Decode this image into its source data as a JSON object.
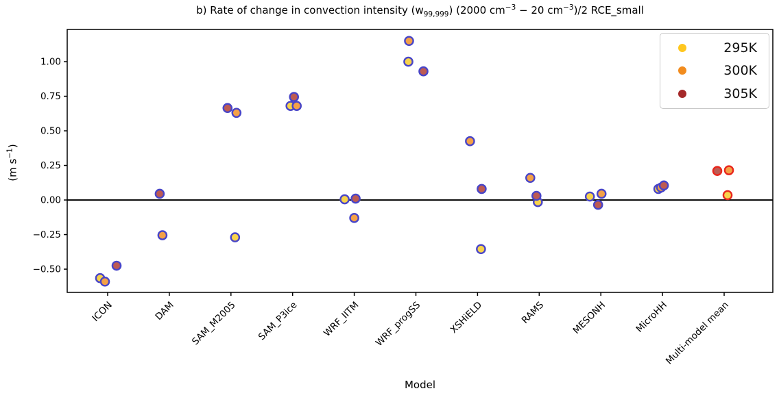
{
  "title": {
    "pre": "b) Rate of change in convection intensity (w",
    "sub": "99,999",
    "mid1": ") (2000 cm",
    "sup1": "−3",
    "mid2": " − 20 cm",
    "sup2": "−3",
    "post": ")/2 RCE_small"
  },
  "y_axis": {
    "label_pre": "(m s",
    "label_sup": "−1",
    "label_post": ")"
  },
  "x_axis": {
    "label": "Model"
  },
  "chart_data": {
    "type": "scatter",
    "title": "b) Rate of change in convection intensity (w99,999) (2000 cm−3 − 20 cm−3)/2 RCE_small",
    "xlabel": "Model",
    "ylabel": "(m s−1)",
    "ylim": [
      -0.668,
      1.233
    ],
    "grid": false,
    "zero_line": true,
    "legend_position": "upper right",
    "yticks": [
      {
        "label": "1.00",
        "value": 1.0
      },
      {
        "label": "0.75",
        "value": 0.75
      },
      {
        "label": "0.50",
        "value": 0.5
      },
      {
        "label": "0.25",
        "value": 0.25
      },
      {
        "label": "0.00",
        "value": 0.0
      },
      {
        "label": "−0.25",
        "value": -0.25
      },
      {
        "label": "−0.50",
        "value": -0.5
      }
    ],
    "categories": [
      "ICON",
      "DAM",
      "SAM_M2005",
      "SAM_P3ice",
      "WRF_IITM",
      "WRF_progSS",
      "XSHiELD",
      "RAMS",
      "MESONH",
      "MicroHH",
      "Multi-model mean"
    ],
    "series": [
      {
        "name": "295K",
        "fill": "#F8D34B",
        "legend_color": "#FFC71F"
      },
      {
        "name": "300K",
        "fill": "#F4A147",
        "legend_color": "#F28C1E"
      },
      {
        "name": "305K",
        "fill": "#BD5B53",
        "legend_color": "#A5292A"
      }
    ],
    "marker": {
      "edge_default": "#4845C8",
      "edge_multi_model": "#E8261C",
      "radius": 6.1,
      "edge_width": 2.4
    },
    "points": [
      {
        "category": "ICON",
        "series": "295K",
        "value": -0.565,
        "dx": -11
      },
      {
        "category": "ICON",
        "series": "300K",
        "value": -0.59,
        "dx": -4
      },
      {
        "category": "ICON",
        "series": "305K",
        "value": -0.475,
        "dx": 13
      },
      {
        "category": "DAM",
        "series": "300K",
        "value": -0.255,
        "dx": -10
      },
      {
        "category": "DAM",
        "series": "305K",
        "value": 0.045,
        "dx": -14
      },
      {
        "category": "SAM_M2005",
        "series": "295K",
        "value": -0.27,
        "dx": 6
      },
      {
        "category": "SAM_M2005",
        "series": "300K",
        "value": 0.63,
        "dx": 8
      },
      {
        "category": "SAM_M2005",
        "series": "305K",
        "value": 0.665,
        "dx": -5
      },
      {
        "category": "SAM_P3ice",
        "series": "295K",
        "value": 0.68,
        "dx": -3
      },
      {
        "category": "SAM_P3ice",
        "series": "300K",
        "value": 0.68,
        "dx": 6
      },
      {
        "category": "SAM_P3ice",
        "series": "305K",
        "value": 0.745,
        "dx": 2
      },
      {
        "category": "WRF_IITM",
        "series": "295K",
        "value": 0.005,
        "dx": -14
      },
      {
        "category": "WRF_IITM",
        "series": "300K",
        "value": -0.13,
        "dx": 0
      },
      {
        "category": "WRF_IITM",
        "series": "305K",
        "value": 0.01,
        "dx": 2
      },
      {
        "category": "WRF_progSS",
        "series": "295K",
        "value": 1.0,
        "dx": -11
      },
      {
        "category": "WRF_progSS",
        "series": "300K",
        "value": 1.15,
        "dx": -10
      },
      {
        "category": "WRF_progSS",
        "series": "305K",
        "value": 0.93,
        "dx": 11
      },
      {
        "category": "XSHiELD",
        "series": "295K",
        "value": -0.355,
        "dx": 5
      },
      {
        "category": "XSHiELD",
        "series": "300K",
        "value": 0.425,
        "dx": -11
      },
      {
        "category": "XSHiELD",
        "series": "305K",
        "value": 0.08,
        "dx": 6
      },
      {
        "category": "RAMS",
        "series": "295K",
        "value": -0.015,
        "dx": -2
      },
      {
        "category": "RAMS",
        "series": "300K",
        "value": 0.16,
        "dx": -13
      },
      {
        "category": "RAMS",
        "series": "305K",
        "value": 0.03,
        "dx": -4
      },
      {
        "category": "MESONH",
        "series": "295K",
        "value": 0.025,
        "dx": -16
      },
      {
        "category": "MESONH",
        "series": "300K",
        "value": 0.045,
        "dx": 1
      },
      {
        "category": "MESONH",
        "series": "305K",
        "value": -0.035,
        "dx": -4
      },
      {
        "category": "MicroHH",
        "series": "295K",
        "value": 0.08,
        "dx": -6
      },
      {
        "category": "MicroHH",
        "series": "300K",
        "value": 0.09,
        "dx": -2
      },
      {
        "category": "MicroHH",
        "series": "305K",
        "value": 0.105,
        "dx": 2
      },
      {
        "category": "Multi-model mean",
        "series": "295K",
        "value": 0.035,
        "dx": 5,
        "edge": "multi_model"
      },
      {
        "category": "Multi-model mean",
        "series": "300K",
        "value": 0.215,
        "dx": 7,
        "edge": "multi_model"
      },
      {
        "category": "Multi-model mean",
        "series": "305K",
        "value": 0.21,
        "dx": -10,
        "edge": "multi_model"
      }
    ]
  }
}
